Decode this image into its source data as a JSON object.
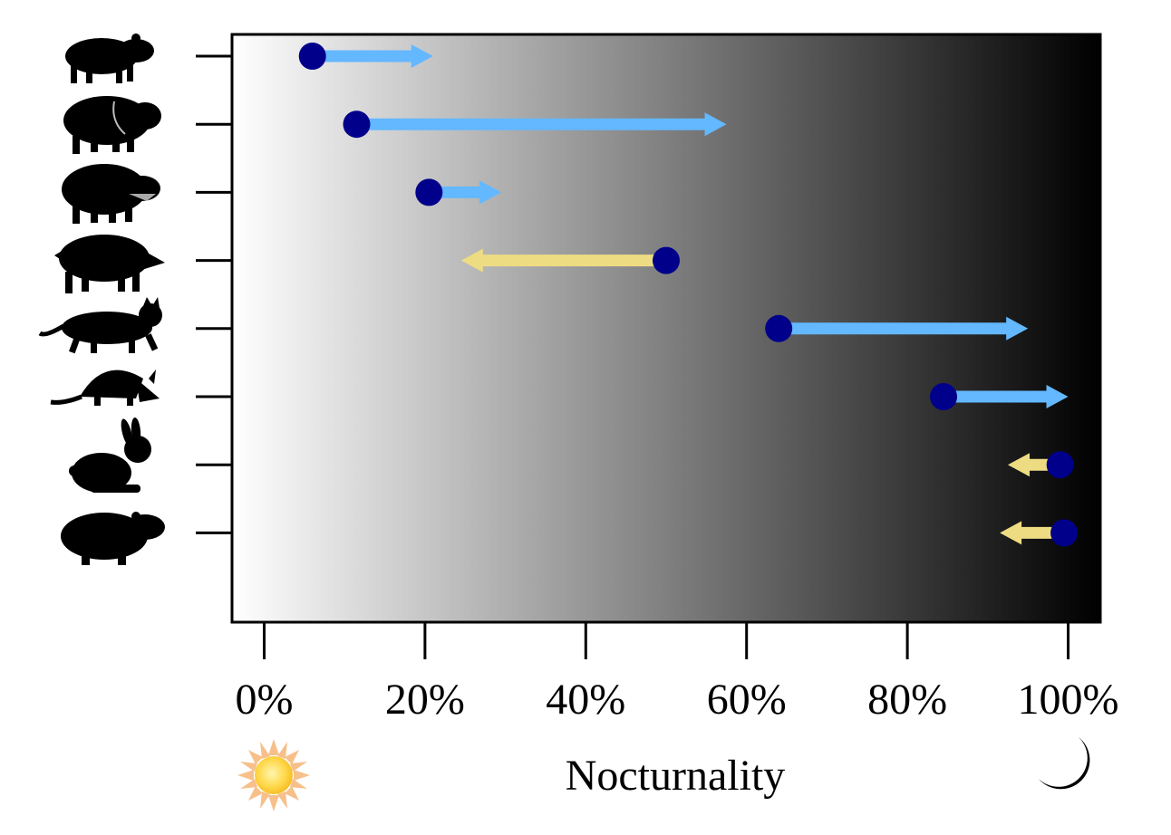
{
  "chart_data": {
    "type": "dot-arrow",
    "xlabel": "Nocturnality",
    "x_ticks": [
      "0%",
      "20%",
      "40%",
      "60%",
      "80%",
      "100%"
    ],
    "xlim": [
      -4,
      104
    ],
    "rows": [
      {
        "animal": "agouti",
        "start": 6,
        "end": 21,
        "direction": "increase"
      },
      {
        "animal": "collared-peccary",
        "start": 11.5,
        "end": 57.5,
        "direction": "increase"
      },
      {
        "animal": "white-lipped-peccary",
        "start": 20.5,
        "end": 29.5,
        "direction": "increase"
      },
      {
        "animal": "wild-boar",
        "start": 50,
        "end": 24.5,
        "direction": "decrease"
      },
      {
        "animal": "cat",
        "start": 64,
        "end": 95,
        "direction": "increase"
      },
      {
        "animal": "armadillo",
        "start": 84.5,
        "end": 100,
        "direction": "increase"
      },
      {
        "animal": "rabbit",
        "start": 99,
        "end": 92.5,
        "direction": "decrease"
      },
      {
        "animal": "paca",
        "start": 99.5,
        "end": 91.5,
        "direction": "decrease"
      }
    ],
    "legend": "none",
    "grid": false,
    "background": "gradient white (day) to black (night)",
    "colors": {
      "point": "#00008b",
      "increase_arrow": "#63b8ff",
      "decrease_arrow": "#eedc82"
    },
    "icons": {
      "day": "sun-icon",
      "night": "moon-icon"
    }
  }
}
